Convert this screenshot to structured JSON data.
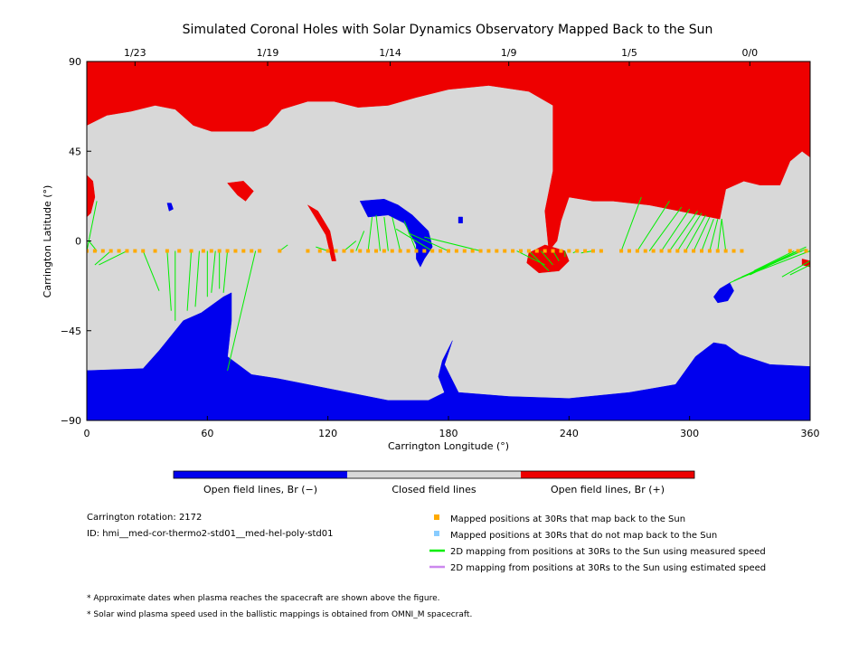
{
  "chart_data": {
    "type": "map",
    "title": "Simulated Coronal Holes with Solar Dynamics Observatory Mapped Back to the Sun",
    "xlabel": "Carrington Longitude (°)",
    "ylabel": "Carrington Latitude (°)",
    "xlim": [
      0,
      360
    ],
    "ylim": [
      -90,
      90
    ],
    "x_ticks": [
      0,
      60,
      120,
      180,
      240,
      300,
      360
    ],
    "y_ticks": [
      -90,
      -45,
      0,
      45,
      90
    ],
    "y_tick_labels": [
      "−90",
      "−45",
      "0",
      "45",
      "90"
    ],
    "top_ticks": [
      {
        "lon": 24,
        "label": "1/23"
      },
      {
        "lon": 90,
        "label": "1/19"
      },
      {
        "lon": 151,
        "label": "1/14"
      },
      {
        "lon": 210,
        "label": "1/9"
      },
      {
        "lon": 270,
        "label": "1/5"
      },
      {
        "lon": 330,
        "label": "0/0"
      }
    ],
    "colorbar": [
      {
        "label": "Open field lines, Br (−)",
        "color": "#0000ee"
      },
      {
        "label": "Closed field lines",
        "color": "#d8d8d8"
      },
      {
        "label": "Open field lines, Br (+)",
        "color": "#ee0000"
      }
    ],
    "colors": {
      "open_negative": "#0000ee",
      "closed": "#d8d8d8",
      "open_positive": "#ee0000",
      "mapped": "#ffaa00",
      "not_mapped": "#88ccff",
      "measured_line": "#00ee00",
      "estimated_line": "#cc88ee"
    },
    "regions": {
      "positive": [
        {
          "name": "north-polar-positive-hole",
          "points": [
            [
              0,
              90
            ],
            [
              360,
              90
            ],
            [
              360,
              42
            ],
            [
              356,
              45
            ],
            [
              350,
              40
            ],
            [
              345,
              28
            ],
            [
              335,
              28
            ],
            [
              327,
              30
            ],
            [
              318,
              26
            ],
            [
              315,
              11
            ],
            [
              300,
              14
            ],
            [
              280,
              18
            ],
            [
              262,
              20
            ],
            [
              252,
              20
            ],
            [
              240,
              22
            ],
            [
              236,
              10
            ],
            [
              234,
              0
            ],
            [
              230,
              -5
            ],
            [
              228,
              15
            ],
            [
              232,
              35
            ],
            [
              232,
              45
            ],
            [
              232,
              55
            ],
            [
              232,
              68
            ],
            [
              220,
              75
            ],
            [
              200,
              78
            ],
            [
              180,
              76
            ],
            [
              164,
              72
            ],
            [
              150,
              68
            ],
            [
              135,
              67
            ],
            [
              123,
              70
            ],
            [
              110,
              70
            ],
            [
              97,
              66
            ],
            [
              90,
              58
            ],
            [
              83,
              55
            ],
            [
              74,
              55
            ],
            [
              62,
              55
            ],
            [
              53,
              58
            ],
            [
              44,
              66
            ],
            [
              34,
              68
            ],
            [
              22,
              65
            ],
            [
              10,
              63
            ],
            [
              0,
              58
            ]
          ]
        },
        {
          "name": "positive-patch-west-edge",
          "points": [
            [
              0,
              33
            ],
            [
              3,
              30
            ],
            [
              4,
              22
            ],
            [
              2,
              14
            ],
            [
              0,
              12
            ]
          ]
        },
        {
          "name": "positive-patch-lon-75",
          "points": [
            [
              70,
              29
            ],
            [
              78,
              30
            ],
            [
              83,
              25
            ],
            [
              79,
              20
            ],
            [
              75,
              23
            ]
          ]
        },
        {
          "name": "positive-filament-lon-110",
          "points": [
            [
              110,
              18
            ],
            [
              115,
              15
            ],
            [
              121,
              5
            ],
            [
              124,
              -10
            ],
            [
              122,
              -10
            ],
            [
              119,
              3
            ],
            [
              113,
              13
            ]
          ]
        },
        {
          "name": "positive-equatorial-patch",
          "points": [
            [
              220,
              -6
            ],
            [
              228,
              -2
            ],
            [
              238,
              -5
            ],
            [
              240,
              -10
            ],
            [
              235,
              -15
            ],
            [
              225,
              -16
            ],
            [
              219,
              -11
            ]
          ]
        },
        {
          "name": "positive-patch-east-edge",
          "points": [
            [
              356,
              -9
            ],
            [
              360,
              -10
            ],
            [
              360,
              -13
            ],
            [
              356,
              -12
            ]
          ]
        }
      ],
      "negative": [
        {
          "name": "south-polar-negative-hole",
          "points": [
            [
              0,
              -65
            ],
            [
              28,
              -64
            ],
            [
              36,
              -55
            ],
            [
              48,
              -40
            ],
            [
              57,
              -36
            ],
            [
              68,
              -28
            ],
            [
              72,
              -26
            ],
            [
              72,
              -40
            ],
            [
              70,
              -58
            ],
            [
              82,
              -67
            ],
            [
              95,
              -69
            ],
            [
              120,
              -74
            ],
            [
              150,
              -80
            ],
            [
              170,
              -80
            ],
            [
              178,
              -76
            ],
            [
              175,
              -68
            ],
            [
              177,
              -60
            ],
            [
              182,
              -50
            ],
            [
              178,
              -62
            ],
            [
              185,
              -76
            ],
            [
              210,
              -78
            ],
            [
              240,
              -79
            ],
            [
              270,
              -76
            ],
            [
              293,
              -72
            ],
            [
              303,
              -58
            ],
            [
              312,
              -51
            ],
            [
              318,
              -52
            ],
            [
              325,
              -57
            ],
            [
              340,
              -62
            ],
            [
              360,
              -63
            ],
            [
              360,
              -90
            ],
            [
              0,
              -90
            ]
          ]
        },
        {
          "name": "negative-equatorial-hole",
          "points": [
            [
              136,
              20
            ],
            [
              148,
              21
            ],
            [
              155,
              18
            ],
            [
              162,
              13
            ],
            [
              170,
              5
            ],
            [
              172,
              -3
            ],
            [
              168,
              -9
            ],
            [
              166,
              -13
            ],
            [
              164,
              -9
            ],
            [
              164,
              -2
            ],
            [
              158,
              9
            ],
            [
              150,
              13
            ],
            [
              140,
              12
            ]
          ]
        },
        {
          "name": "negative-hole-lon-315",
          "points": [
            [
              315,
              -24
            ],
            [
              320,
              -21
            ],
            [
              322,
              -25
            ],
            [
              319,
              -30
            ],
            [
              314,
              -31
            ],
            [
              312,
              -28
            ]
          ]
        },
        {
          "name": "negative-speck-lon-41",
          "points": [
            [
              40,
              19
            ],
            [
              42,
              19
            ],
            [
              43,
              16
            ],
            [
              41,
              15
            ]
          ]
        },
        {
          "name": "negative-speck-lon-186",
          "points": [
            [
              185,
              12
            ],
            [
              187,
              12
            ],
            [
              187,
              9
            ],
            [
              185,
              9
            ]
          ]
        }
      ]
    },
    "mapped_positions": {
      "lat": -5,
      "lon": [
        0,
        4,
        8,
        12,
        16,
        20,
        24,
        28,
        34,
        40,
        46,
        52,
        58,
        62,
        66,
        70,
        74,
        78,
        82,
        86,
        96,
        110,
        116,
        120,
        124,
        128,
        132,
        136,
        140,
        144,
        148,
        152,
        156,
        160,
        164,
        168,
        172,
        176,
        180,
        184,
        188,
        192,
        196,
        200,
        204,
        208,
        212,
        216,
        220,
        224,
        228,
        232,
        236,
        240,
        244,
        248,
        252,
        256,
        266,
        270,
        274,
        278,
        282,
        286,
        290,
        294,
        298,
        302,
        306,
        310,
        314,
        318,
        322,
        326,
        350,
        354,
        358
      ]
    },
    "field_lines_measured": [
      [
        0,
        -5,
        5,
        20
      ],
      [
        5,
        -5,
        1,
        0
      ],
      [
        12,
        -5,
        4,
        -12
      ],
      [
        20,
        -5,
        6,
        -12
      ],
      [
        28,
        -5,
        36,
        -25
      ],
      [
        40,
        -5,
        42,
        -35
      ],
      [
        44,
        -5,
        44,
        -40
      ],
      [
        52,
        -5,
        50,
        -35
      ],
      [
        56,
        -5,
        54,
        -33
      ],
      [
        60,
        -5,
        60,
        -28
      ],
      [
        64,
        -5,
        62,
        -26
      ],
      [
        66,
        -5,
        66,
        -24
      ],
      [
        70,
        -5,
        68,
        -26
      ],
      [
        84,
        -5,
        70,
        -65
      ],
      [
        96,
        -5,
        100,
        -2
      ],
      [
        120,
        -5,
        114,
        -3
      ],
      [
        128,
        -5,
        134,
        0
      ],
      [
        134,
        -5,
        138,
        5
      ],
      [
        140,
        -5,
        142,
        12
      ],
      [
        146,
        -5,
        144,
        13
      ],
      [
        150,
        -5,
        148,
        12
      ],
      [
        156,
        -5,
        152,
        12
      ],
      [
        164,
        -5,
        158,
        10
      ],
      [
        172,
        -5,
        154,
        6
      ],
      [
        180,
        -5,
        160,
        4
      ],
      [
        196,
        -5,
        168,
        2
      ],
      [
        214,
        -5,
        228,
        -12
      ],
      [
        220,
        -5,
        230,
        -15
      ],
      [
        226,
        -5,
        232,
        -12
      ],
      [
        232,
        -5,
        235,
        -10
      ],
      [
        238,
        -5,
        238,
        -8
      ],
      [
        244,
        -5,
        242,
        -6
      ],
      [
        252,
        -5,
        246,
        -6
      ],
      [
        266,
        -5,
        276,
        22
      ],
      [
        274,
        -5,
        290,
        20
      ],
      [
        280,
        -5,
        296,
        17
      ],
      [
        286,
        -5,
        300,
        16
      ],
      [
        290,
        -5,
        304,
        15
      ],
      [
        294,
        -5,
        306,
        14
      ],
      [
        298,
        -5,
        308,
        13
      ],
      [
        302,
        -5,
        310,
        12
      ],
      [
        306,
        -5,
        312,
        11
      ],
      [
        310,
        -5,
        314,
        11
      ],
      [
        314,
        -5,
        316,
        11
      ],
      [
        318,
        -5,
        316,
        11
      ],
      [
        358,
        -3,
        322,
        -20
      ],
      [
        358,
        -4,
        320,
        -21
      ],
      [
        360,
        -5,
        324,
        -19
      ],
      [
        356,
        -5,
        326,
        -18
      ],
      [
        354,
        -5,
        330,
        -17
      ],
      [
        352,
        -5,
        332,
        -15
      ],
      [
        360,
        -10,
        346,
        -18
      ],
      [
        360,
        -12,
        350,
        -17
      ]
    ],
    "legend": [
      {
        "label": "Mapped positions at 30Rs that map back to the Sun",
        "kind": "square",
        "color": "#ffaa00"
      },
      {
        "label": "Mapped positions at 30Rs that do not map back to the Sun",
        "kind": "square",
        "color": "#88ccff"
      },
      {
        "label": "2D mapping from positions at 30Rs to the Sun using measured speed",
        "kind": "line",
        "color": "#00ee00"
      },
      {
        "label": "2D mapping from positions at 30Rs to the Sun using estimated speed",
        "kind": "line",
        "color": "#cc88ee"
      }
    ]
  },
  "info": {
    "rotation": "Carrington rotation: 2172",
    "id": "ID: hmi__med-cor-thermo2-std01__med-hel-poly-std01"
  },
  "footnotes": [
    "* Approximate dates when plasma reaches the spacecraft are shown above the figure.",
    "* Solar wind plasma speed used in the ballistic mappings is obtained from OMNI_M spacecraft."
  ]
}
